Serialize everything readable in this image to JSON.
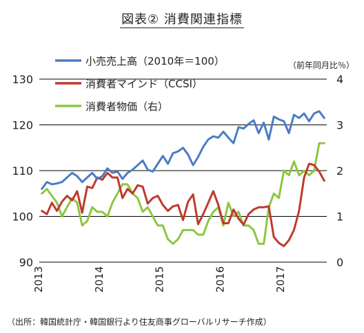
{
  "title": "図表② 消費関連指標",
  "source_note": "（出所：韓国統計庁・韓国銀行より住友商事グローバルリサーチ作成）",
  "colors": {
    "retail": "#4a7cc4",
    "ccsi": "#c0392b",
    "cpi": "#8dc63f",
    "grid": "#000000"
  },
  "chart_data": {
    "type": "line",
    "title": "図表② 消費関連指標",
    "y_left": {
      "ylim": [
        90,
        130
      ],
      "ticks": [
        90,
        100,
        110,
        120,
        130
      ]
    },
    "y_right": {
      "ylim": [
        0,
        4
      ],
      "ticks": [
        0,
        1,
        2,
        3,
        4
      ],
      "label": "（前年同月比％）"
    },
    "x": {
      "start": "2013-01",
      "months": 57,
      "tick_labels": [
        "2013",
        "2014",
        "2015",
        "2016",
        "2017"
      ]
    },
    "grid": "horizontal",
    "legend_position": "top-left",
    "series": [
      {
        "name": "小売売上高（2010年＝100）",
        "axis": "left",
        "values": [
          106,
          107.5,
          107,
          107.2,
          107.5,
          108.5,
          109.5,
          108.8,
          107.5,
          108.5,
          109.5,
          108.2,
          108.8,
          110.5,
          109.5,
          109.8,
          108.2,
          109.5,
          110.2,
          111.2,
          112.2,
          110.2,
          109.8,
          111.5,
          113.2,
          111.5,
          113.8,
          114.2,
          115,
          113.5,
          111.2,
          113,
          115.2,
          116.8,
          117.5,
          117.2,
          118.5,
          117.2,
          116,
          119.5,
          119.2,
          120.2,
          121,
          118.2,
          120.5,
          116.8,
          121.8,
          121.2,
          120.8,
          118.2,
          122.2,
          121.5,
          122.5,
          120.8,
          122.5,
          123,
          121.5
        ]
      },
      {
        "name": "消費者マインド（CCSI）",
        "axis": "left",
        "values": [
          101.2,
          100.5,
          103,
          101.2,
          103.2,
          104.5,
          103.5,
          105.5,
          100.8,
          106.5,
          106.2,
          108.5,
          108,
          109.5,
          108.5,
          108.5,
          104,
          106,
          105,
          106.8,
          106.5,
          102.8,
          104,
          104.5,
          102.5,
          101.2,
          102.2,
          102.5,
          99.2,
          103.2,
          104.8,
          98.3,
          100.5,
          103,
          105.5,
          102.5,
          98.5,
          98.5,
          101.5,
          99.5,
          98.2,
          100.5,
          101.5,
          102,
          102,
          102.2,
          95.5,
          94.2,
          93.5,
          94.8,
          97,
          101.2,
          108.5,
          111.5,
          111.2,
          109.8,
          107.8
        ]
      },
      {
        "name": "消費者物価（右）",
        "axis": "right",
        "values": [
          1.5,
          1.6,
          1.45,
          1.3,
          1.0,
          1.2,
          1.4,
          1.3,
          0.8,
          0.9,
          1.2,
          1.1,
          1.1,
          1.0,
          1.3,
          1.5,
          1.7,
          1.7,
          1.5,
          1.4,
          1.1,
          1.2,
          1.0,
          0.8,
          0.8,
          0.5,
          0.4,
          0.5,
          0.7,
          0.7,
          0.7,
          0.6,
          0.6,
          0.9,
          1.1,
          1.2,
          0.8,
          1.3,
          1.0,
          1.1,
          0.8,
          0.8,
          0.7,
          0.4,
          0.4,
          1.2,
          1.5,
          1.4,
          2.0,
          1.9,
          2.2,
          1.9,
          2.0,
          1.9,
          2.0,
          2.6,
          2.6
        ]
      }
    ]
  }
}
